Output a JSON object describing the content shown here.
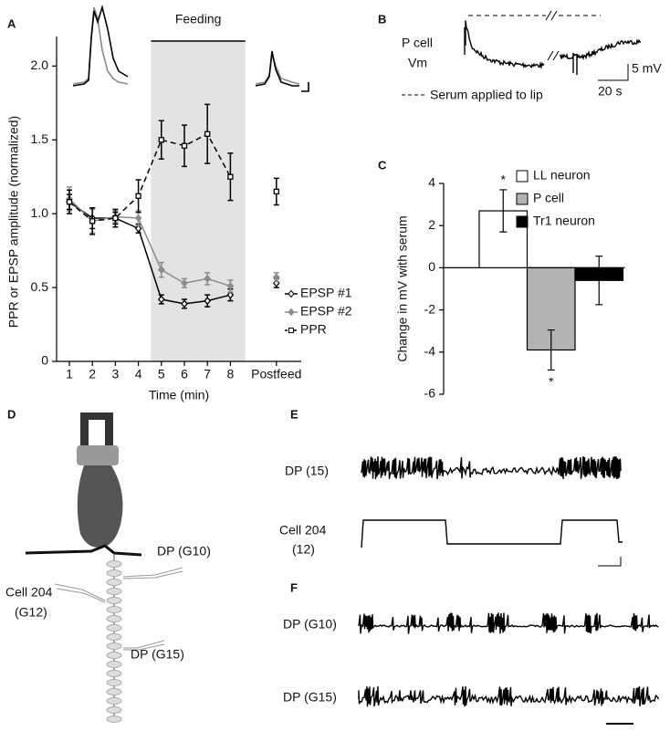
{
  "chart_data": [
    {
      "type": "line",
      "annotation": "Feeding",
      "xlabel": "Time (min)",
      "ylabel": "PPR or EPSP amplitude (normalized)",
      "categories": [
        "1",
        "2",
        "3",
        "4",
        "5",
        "6",
        "7",
        "8",
        null,
        "Postfeed"
      ],
      "ylim": [
        0,
        2.2
      ],
      "yticks": [
        0,
        0.5,
        {
          "value": 1,
          "label": "1.0"
        },
        1.5,
        {
          "value": 2,
          "label": "2.0"
        }
      ],
      "legend": "bottom-right",
      "series": [
        {
          "name": "EPSP #1",
          "color": "#000000",
          "dashed": false,
          "marker": "diamond",
          "values": [
            1.08,
            0.97,
            0.97,
            0.9,
            0.42,
            0.39,
            0.41,
            0.45,
            null,
            0.53
          ],
          "errors": [
            0.05,
            0.07,
            0.04,
            0.03,
            0.03,
            0.03,
            0.04,
            0.04,
            null,
            0.03
          ]
        },
        {
          "name": "EPSP #2",
          "color": "#8c8c8c",
          "dashed": false,
          "marker": "diamond",
          "values": [
            1.1,
            0.95,
            0.98,
            0.97,
            0.62,
            0.53,
            0.56,
            0.51,
            null,
            0.57
          ],
          "errors": [
            0.08,
            0.08,
            0.04,
            0.05,
            0.05,
            0.03,
            0.04,
            0.04,
            null,
            0.03
          ]
        },
        {
          "name": "PPR",
          "color": "#000000",
          "dashed": true,
          "marker": "square",
          "values": [
            1.08,
            0.95,
            0.97,
            1.12,
            1.5,
            1.46,
            1.54,
            1.25,
            null,
            1.15
          ],
          "errors": [
            0.08,
            0.09,
            0.06,
            0.11,
            0.13,
            0.14,
            0.2,
            0.16,
            null,
            0.09
          ]
        }
      ]
    },
    {
      "type": "bar",
      "ylabel": "Change in mV with serum",
      "categories": [
        null
      ],
      "ylim": [
        -6,
        4
      ],
      "yticks": [
        -6,
        -4,
        -2,
        0,
        2,
        4
      ],
      "legend": "top-right",
      "annotations": [
        "*",
        "*"
      ],
      "series": [
        {
          "name": "LL neuron",
          "color": "#ffffff",
          "values": [
            2.7
          ],
          "errors": [
            1.0
          ]
        },
        {
          "name": "P cell",
          "color": "#b3b3b3",
          "values": [
            -3.9
          ],
          "errors": [
            0.95
          ]
        },
        {
          "name": "Tr1 neuron",
          "color": "#000000",
          "values": [
            -0.6
          ],
          "errors": [
            1.15
          ]
        }
      ]
    }
  ],
  "panel_labels": [
    "A",
    "B",
    "C",
    "D",
    "E",
    "F"
  ],
  "panel_b": {
    "cell_label": "P cell",
    "vm_label": "Vm",
    "scale_v": "5 mV",
    "scale_t": "20 s",
    "legend": "Serum applied to lip"
  },
  "panel_d": {
    "labels": [
      "DP (G10)",
      "Cell 204",
      "(G12)",
      "DP (G15)"
    ]
  },
  "panel_e": {
    "labels": [
      "DP (15)",
      "Cell 204",
      "(12)"
    ]
  },
  "panel_f": {
    "labels": [
      "DP (G10)",
      "DP (G15)"
    ]
  }
}
